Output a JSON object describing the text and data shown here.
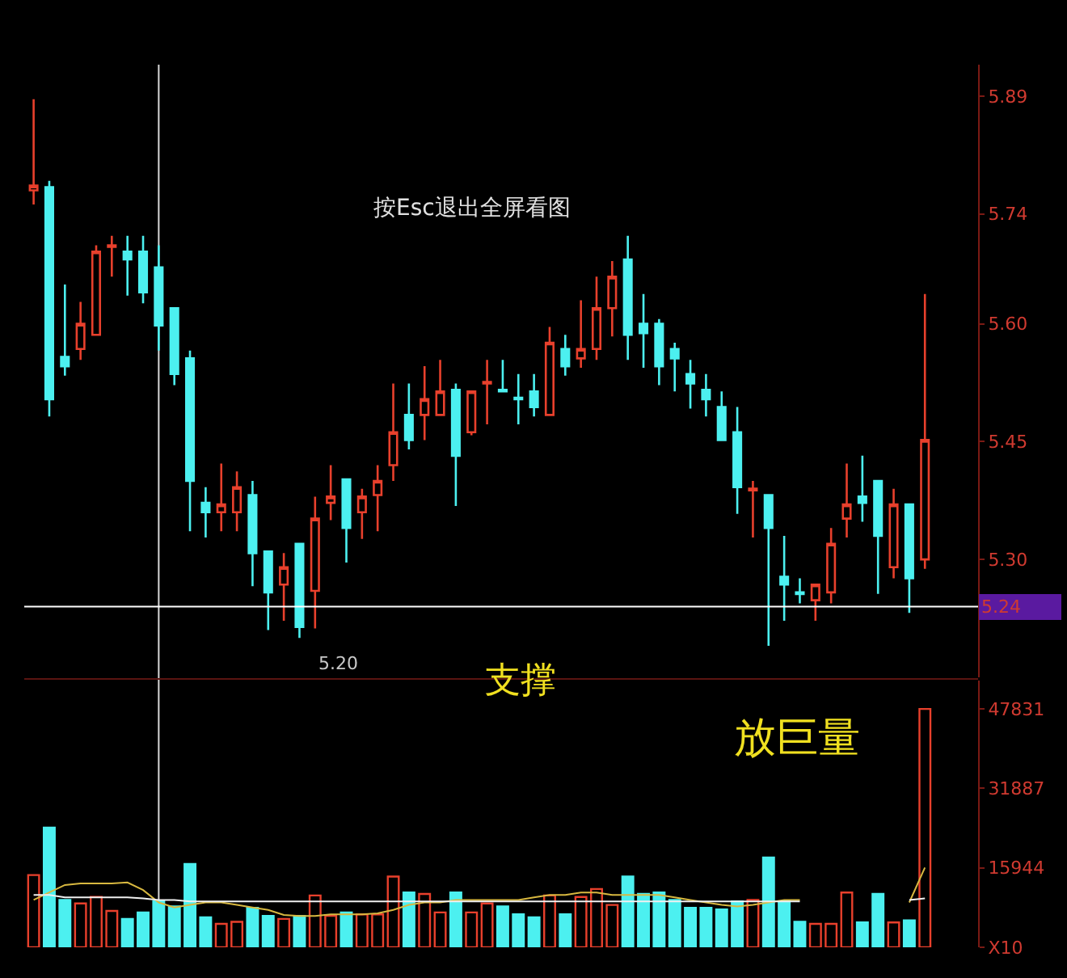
{
  "chart_data": [
    {
      "type": "candlestick",
      "categories": [
        null,
        null,
        null,
        null,
        null,
        null,
        null,
        null,
        null,
        null,
        null,
        null,
        null,
        null,
        null,
        null,
        null,
        null,
        null,
        null,
        null,
        null,
        null,
        null,
        null,
        null,
        null,
        null,
        null,
        null,
        null,
        null,
        null,
        null,
        null,
        null,
        null,
        null,
        null,
        null,
        null,
        null,
        null,
        null,
        null,
        null,
        null,
        null,
        null,
        null,
        null,
        null,
        null,
        null,
        null,
        null,
        null,
        null
      ],
      "ohlc": [
        [
          5.77,
          5.886,
          5.752,
          5.776
        ],
        [
          5.774,
          5.782,
          5.482,
          5.504
        ],
        [
          5.558,
          5.65,
          5.534,
          5.546
        ],
        [
          5.568,
          5.628,
          5.554,
          5.6
        ],
        [
          5.586,
          5.7,
          5.586,
          5.692
        ],
        [
          5.698,
          5.712,
          5.66,
          5.7
        ],
        [
          5.692,
          5.712,
          5.636,
          5.682
        ],
        [
          5.692,
          5.712,
          5.626,
          5.64
        ],
        [
          5.672,
          5.7,
          5.566,
          5.598
        ],
        [
          5.62,
          5.62,
          5.522,
          5.536
        ],
        [
          5.556,
          5.566,
          5.336,
          5.4
        ],
        [
          5.372,
          5.392,
          5.328,
          5.36
        ],
        [
          5.36,
          5.422,
          5.336,
          5.37
        ],
        [
          5.36,
          5.412,
          5.336,
          5.392
        ],
        [
          5.382,
          5.4,
          5.266,
          5.308
        ],
        [
          5.31,
          5.31,
          5.21,
          5.258
        ],
        [
          5.268,
          5.308,
          5.222,
          5.29
        ],
        [
          5.32,
          5.32,
          5.2,
          5.214
        ],
        [
          5.26,
          5.38,
          5.212,
          5.352
        ],
        [
          5.372,
          5.42,
          5.35,
          5.38
        ],
        [
          5.402,
          5.402,
          5.296,
          5.34
        ],
        [
          5.36,
          5.39,
          5.326,
          5.38
        ],
        [
          5.382,
          5.42,
          5.336,
          5.4
        ],
        [
          5.42,
          5.524,
          5.4,
          5.462
        ],
        [
          5.484,
          5.524,
          5.44,
          5.452
        ],
        [
          5.484,
          5.546,
          5.452,
          5.504
        ],
        [
          5.484,
          5.554,
          5.484,
          5.514
        ],
        [
          5.516,
          5.524,
          5.368,
          5.432
        ],
        [
          5.462,
          5.514,
          5.458,
          5.514
        ],
        [
          5.524,
          5.554,
          5.472,
          5.526
        ],
        [
          5.516,
          5.554,
          5.514,
          5.514
        ],
        [
          5.506,
          5.536,
          5.472,
          5.504
        ],
        [
          5.514,
          5.536,
          5.482,
          5.494
        ],
        [
          5.484,
          5.596,
          5.484,
          5.576
        ],
        [
          5.568,
          5.586,
          5.534,
          5.546
        ],
        [
          5.556,
          5.63,
          5.544,
          5.568
        ],
        [
          5.568,
          5.66,
          5.554,
          5.62
        ],
        [
          5.62,
          5.68,
          5.584,
          5.66
        ],
        [
          5.682,
          5.712,
          5.554,
          5.586
        ],
        [
          5.6,
          5.638,
          5.544,
          5.588
        ],
        [
          5.6,
          5.606,
          5.522,
          5.546
        ],
        [
          5.568,
          5.576,
          5.514,
          5.556
        ],
        [
          5.536,
          5.554,
          5.492,
          5.524
        ],
        [
          5.516,
          5.536,
          5.482,
          5.504
        ],
        [
          5.494,
          5.514,
          5.452,
          5.452
        ],
        [
          5.462,
          5.494,
          5.358,
          5.392
        ],
        [
          5.388,
          5.4,
          5.328,
          5.39
        ],
        [
          5.382,
          5.382,
          5.19,
          5.34
        ],
        [
          5.278,
          5.33,
          5.222,
          5.268
        ],
        [
          5.258,
          5.276,
          5.244,
          5.256
        ],
        [
          5.248,
          5.268,
          5.222,
          5.268
        ],
        [
          5.258,
          5.34,
          5.244,
          5.32
        ],
        [
          5.352,
          5.422,
          5.328,
          5.37
        ],
        [
          5.38,
          5.432,
          5.348,
          5.372
        ],
        [
          5.4,
          5.4,
          5.256,
          5.33
        ],
        [
          5.29,
          5.39,
          5.276,
          5.37
        ],
        [
          5.37,
          5.37,
          5.232,
          5.276
        ],
        [
          5.3,
          5.638,
          5.288,
          5.452
        ]
      ],
      "colors": [
        "#e8402c",
        "#4cf0f0",
        "#4cf0f0",
        "#e8402c",
        "#e8402c",
        "#e8402c",
        "#4cf0f0",
        "#4cf0f0",
        "#4cf0f0",
        "#4cf0f0",
        "#4cf0f0",
        "#4cf0f0",
        "#e8402c",
        "#e8402c",
        "#4cf0f0",
        "#4cf0f0",
        "#e8402c",
        "#4cf0f0",
        "#e8402c",
        "#e8402c",
        "#4cf0f0",
        "#e8402c",
        "#e8402c",
        "#e8402c",
        "#4cf0f0",
        "#e8402c",
        "#e8402c",
        "#4cf0f0",
        "#e8402c",
        "#e8402c",
        "#4cf0f0",
        "#4cf0f0",
        "#4cf0f0",
        "#e8402c",
        "#4cf0f0",
        "#e8402c",
        "#e8402c",
        "#e8402c",
        "#4cf0f0",
        "#4cf0f0",
        "#4cf0f0",
        "#4cf0f0",
        "#4cf0f0",
        "#4cf0f0",
        "#4cf0f0",
        "#4cf0f0",
        "#e8402c",
        "#4cf0f0",
        "#4cf0f0",
        "#4cf0f0",
        "#e8402c",
        "#e8402c",
        "#e8402c",
        "#4cf0f0",
        "#4cf0f0",
        "#e8402c",
        "#4cf0f0",
        "#e8402c"
      ],
      "ylim": [
        5.15,
        5.93
      ],
      "yticks": [
        5.89,
        5.74,
        {
          "value": 5.6,
          "label": "5.60"
        },
        5.45,
        {
          "value": 5.3,
          "label": "5.30"
        }
      ],
      "ref_lines": [
        {
          "axis": "y",
          "value": 5.24,
          "label": "5.24",
          "color": "#ffffff"
        }
      ],
      "annotations": [
        "按Esc退出全屏看图",
        "支撑",
        "5.20"
      ]
    },
    {
      "type": "bar",
      "categories": [
        null,
        null,
        null,
        null,
        null,
        null,
        null,
        null,
        null,
        null,
        null,
        null,
        null,
        null,
        null,
        null,
        null,
        null,
        null,
        null,
        null,
        null,
        null,
        null,
        null,
        null,
        null,
        null,
        null,
        null,
        null,
        null,
        null,
        null,
        null,
        null,
        null,
        null,
        null,
        null,
        null,
        null,
        null,
        null,
        null,
        null,
        null,
        null,
        null,
        null,
        null,
        null,
        null,
        null,
        null,
        null,
        null,
        null
      ],
      "series": [
        {
          "type": "bar",
          "values": [
            14500,
            24000,
            9500,
            8800,
            10100,
            7300,
            5700,
            7000,
            9200,
            8200,
            16700,
            6000,
            4700,
            5100,
            7900,
            6300,
            5700,
            6300,
            10400,
            6300,
            7000,
            6600,
            6600,
            14200,
            11000,
            10700,
            7000,
            11000,
            7000,
            8800,
            8200,
            6600,
            6000,
            10400,
            6600,
            10100,
            11700,
            8500,
            14200,
            10700,
            11000,
            9500,
            7900,
            7900,
            7600,
            9200,
            9500,
            18000,
            9200,
            5100,
            4700,
            4700,
            11000,
            5000,
            10700,
            5000,
            5400,
            47831
          ],
          "colors": [
            "#e8402c",
            "#4cf0f0",
            "#4cf0f0",
            "#e8402c",
            "#e8402c",
            "#e8402c",
            "#4cf0f0",
            "#4cf0f0",
            "#4cf0f0",
            "#4cf0f0",
            "#4cf0f0",
            "#4cf0f0",
            "#e8402c",
            "#e8402c",
            "#4cf0f0",
            "#4cf0f0",
            "#e8402c",
            "#4cf0f0",
            "#e8402c",
            "#e8402c",
            "#4cf0f0",
            "#e8402c",
            "#e8402c",
            "#e8402c",
            "#4cf0f0",
            "#e8402c",
            "#e8402c",
            "#4cf0f0",
            "#e8402c",
            "#e8402c",
            "#4cf0f0",
            "#4cf0f0",
            "#4cf0f0",
            "#e8402c",
            "#4cf0f0",
            "#e8402c",
            "#e8402c",
            "#e8402c",
            "#4cf0f0",
            "#4cf0f0",
            "#4cf0f0",
            "#4cf0f0",
            "#4cf0f0",
            "#4cf0f0",
            "#4cf0f0",
            "#4cf0f0",
            "#e8402c",
            "#4cf0f0",
            "#4cf0f0",
            "#4cf0f0",
            "#e8402c",
            "#e8402c",
            "#e8402c",
            "#4cf0f0",
            "#4cf0f0",
            "#e8402c",
            "#4cf0f0",
            "#e8402c"
          ]
        },
        {
          "type": "line",
          "color": "#d8b840",
          "values": [
            9500,
            11000,
            12500,
            12800,
            12800,
            12800,
            13000,
            11500,
            9000,
            8000,
            8500,
            9000,
            9000,
            8500,
            8000,
            7500,
            6500,
            6300,
            6300,
            6600,
            6600,
            6600,
            6800,
            7500,
            8500,
            9000,
            9000,
            9500,
            9500,
            9500,
            9500,
            9500,
            10000,
            10500,
            10500,
            11000,
            11000,
            10500,
            10500,
            10500,
            10500,
            10000,
            9500,
            9000,
            8500,
            8200,
            8500,
            9000,
            9500,
            9500,
            null,
            null,
            null,
            null,
            null,
            null,
            9000,
            16000
          ]
        },
        {
          "type": "line",
          "color": "#f0f0f0",
          "values": [
            10500,
            10500,
            10000,
            10000,
            10000,
            10000,
            10000,
            9800,
            9500,
            9500,
            9200,
            9200,
            9200,
            9200,
            9200,
            9200,
            9200,
            9200,
            9200,
            9200,
            9200,
            9200,
            9200,
            9200,
            9200,
            9200,
            9200,
            9200,
            9200,
            9200,
            9200,
            9200,
            9200,
            9200,
            9200,
            9200,
            9200,
            9200,
            9200,
            9200,
            9200,
            9200,
            9200,
            9200,
            9200,
            9200,
            9200,
            9200,
            9200,
            9200,
            null,
            null,
            null,
            null,
            null,
            null,
            9500,
            9800
          ]
        }
      ],
      "ylim": [
        0,
        53500
      ],
      "yticks": [
        {
          "value": 0,
          "label": "X10"
        },
        15944,
        31887,
        47831
      ],
      "annotations": [
        "放巨量"
      ]
    }
  ]
}
